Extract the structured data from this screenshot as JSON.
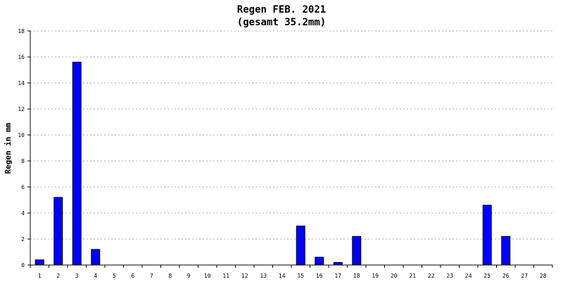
{
  "chart_data": {
    "type": "bar",
    "title": "Regen FEB. 2021",
    "subtitle": "(gesamt 35.2mm)",
    "xlabel": "",
    "ylabel": "Regen in mm",
    "ylim": [
      0,
      18
    ],
    "yticks": [
      0,
      2,
      4,
      6,
      8,
      10,
      12,
      14,
      16,
      18
    ],
    "grid": true,
    "bar_color": "#0000ff",
    "categories": [
      "1",
      "2",
      "3",
      "4",
      "5",
      "6",
      "7",
      "8",
      "9",
      "10",
      "11",
      "12",
      "13",
      "14",
      "15",
      "16",
      "17",
      "18",
      "19",
      "20",
      "21",
      "22",
      "23",
      "24",
      "25",
      "26",
      "27",
      "28"
    ],
    "values": [
      0.4,
      5.2,
      15.6,
      1.2,
      0,
      0,
      0,
      0,
      0,
      0,
      0,
      0,
      0,
      0,
      3.0,
      0.6,
      0.2,
      2.2,
      0,
      0,
      0,
      0,
      0,
      0,
      4.6,
      2.2,
      0,
      0
    ]
  }
}
